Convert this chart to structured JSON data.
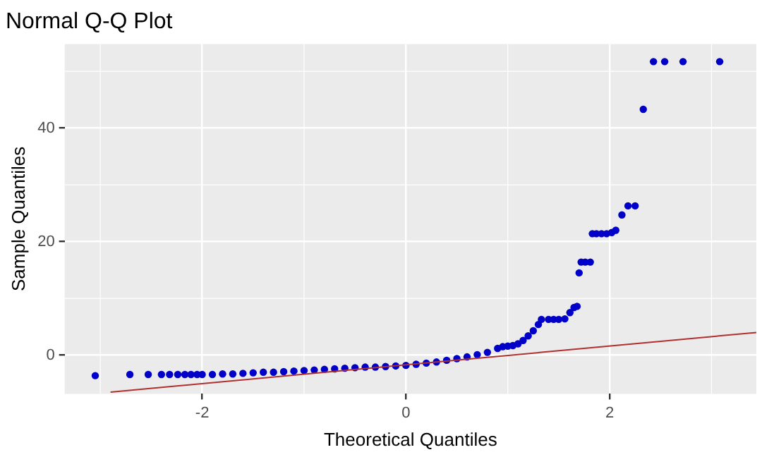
{
  "chart_data": {
    "type": "scatter",
    "title": "Normal Q-Q Plot",
    "xlabel": "Theoretical Quantiles",
    "ylabel": "Sample Quantiles",
    "xlim": [
      -3.35,
      3.44
    ],
    "ylim": [
      -6.8,
      54.8
    ],
    "xticks": [
      -2,
      0,
      2
    ],
    "yticks": [
      0,
      20,
      40
    ],
    "grid": true,
    "legend": false,
    "series": [
      {
        "marker": "circle",
        "color": "#0000c8",
        "x": [
          -3.05,
          -2.71,
          -2.53,
          -2.4,
          -2.32,
          -2.24,
          -2.17,
          -2.11,
          -2.05,
          -2.0,
          -1.9,
          -1.8,
          -1.7,
          -1.6,
          -1.5,
          -1.4,
          -1.3,
          -1.2,
          -1.1,
          -1.0,
          -0.9,
          -0.8,
          -0.7,
          -0.6,
          -0.5,
          -0.4,
          -0.3,
          -0.2,
          -0.1,
          0,
          0.1,
          0.2,
          0.3,
          0.4,
          0.5,
          0.6,
          0.7,
          0.8,
          0.9,
          0.95,
          1.0,
          1.05,
          1.1,
          1.15,
          1.2,
          1.25,
          1.3,
          1.33,
          1.4,
          1.45,
          1.5,
          1.56,
          1.61,
          1.65,
          1.68,
          1.7,
          1.72,
          1.76,
          1.81,
          1.83,
          1.87,
          1.92,
          1.97,
          2.02,
          2.06,
          2.12,
          2.18,
          2.25,
          2.33,
          2.43,
          2.54,
          2.72,
          3.08
        ],
        "values": [
          -3.6,
          -3.4,
          -3.4,
          -3.4,
          -3.4,
          -3.4,
          -3.4,
          -3.4,
          -3.4,
          -3.4,
          -3.4,
          -3.3,
          -3.3,
          -3.2,
          -3.1,
          -3.0,
          -3.0,
          -2.9,
          -2.8,
          -2.7,
          -2.6,
          -2.5,
          -2.4,
          -2.3,
          -2.2,
          -2.1,
          -2.1,
          -2.0,
          -1.9,
          -1.8,
          -1.6,
          -1.4,
          -1.2,
          -0.9,
          -0.6,
          -0.3,
          0.1,
          0.5,
          1.2,
          1.5,
          1.6,
          1.7,
          2.0,
          2.6,
          3.4,
          4.3,
          5.4,
          6.3,
          6.3,
          6.3,
          6.3,
          6.4,
          7.5,
          8.4,
          8.6,
          14.5,
          16.4,
          16.4,
          16.4,
          21.4,
          21.4,
          21.4,
          21.4,
          21.6,
          22.0,
          24.7,
          26.3,
          26.3,
          43.3,
          51.7,
          51.7,
          51.7,
          51.7
        ]
      },
      {
        "type": "line",
        "marker": "none",
        "color": "#b03030",
        "x": [
          -2.9,
          3.44
        ],
        "values": [
          -6.5,
          4.0
        ]
      }
    ]
  }
}
